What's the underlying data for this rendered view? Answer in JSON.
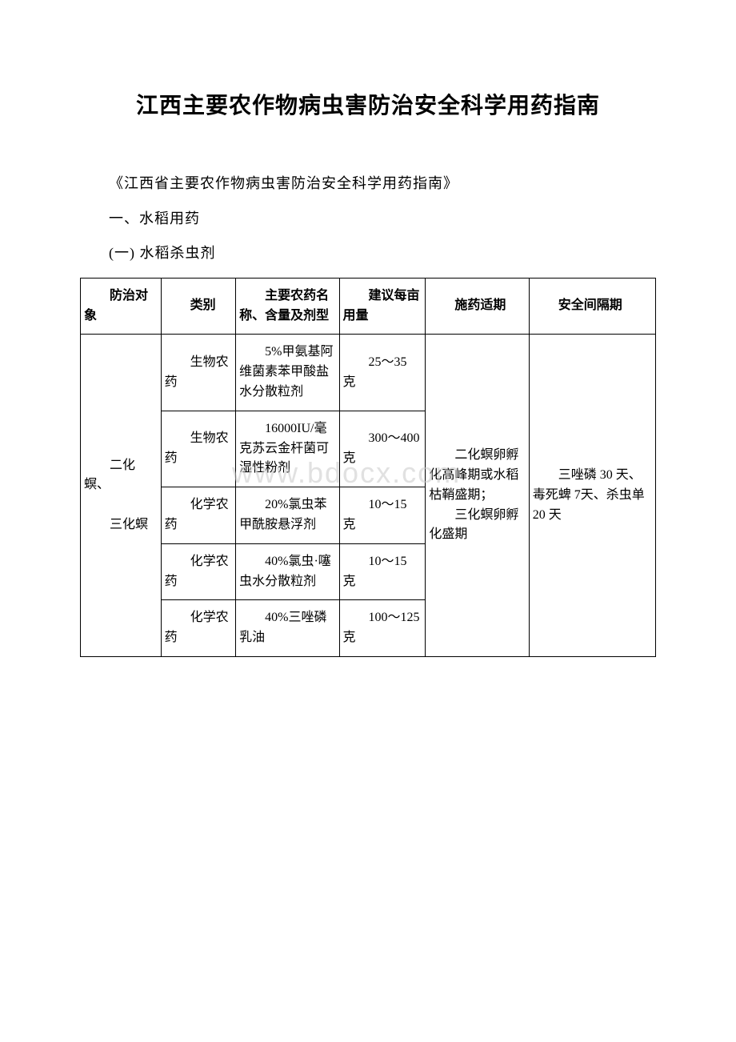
{
  "title": "江西主要农作物病虫害防治安全科学用药指南",
  "intro": "《江西省主要农作物病虫害防治安全科学用药指南》",
  "section1": "一、水稻用药",
  "section1_1": "(一) 水稻杀虫剂",
  "watermark": "www.bdocx.com",
  "table": {
    "headers": {
      "c0": "防治对象",
      "c1": "类别",
      "c2": "主要农药名称、含量及剂型",
      "c3": "建议每亩用量",
      "c4": "施药适期",
      "c5": "安全间隔期"
    },
    "target_a": "二化螟、",
    "target_b": "三化螟",
    "rows": [
      {
        "cat": "生物农药",
        "name": "5%甲氨基阿维菌素苯甲酸盐水分散粒剂",
        "dose": "25～35 克"
      },
      {
        "cat": "生物农药",
        "name": "16000IU/毫克苏云金杆菌可湿性粉剂",
        "dose": "300～400 克"
      },
      {
        "cat": "化学农药",
        "name": "20%氯虫苯甲酰胺悬浮剂",
        "dose": "10～15 克"
      },
      {
        "cat": "化学农药",
        "name": "40%氯虫·噻虫水分散粒剂",
        "dose": "10～15 克"
      },
      {
        "cat": "化学农药",
        "name": "40%三唑磷乳油",
        "dose": "100～125 克"
      }
    ],
    "period_a": "二化螟卵孵化高峰期或水稻枯鞘盛期；",
    "period_b": "三化螟卵孵化盛期",
    "safety": "三唑磷 30 天、毒死蜱 7天、杀虫单 20 天"
  }
}
